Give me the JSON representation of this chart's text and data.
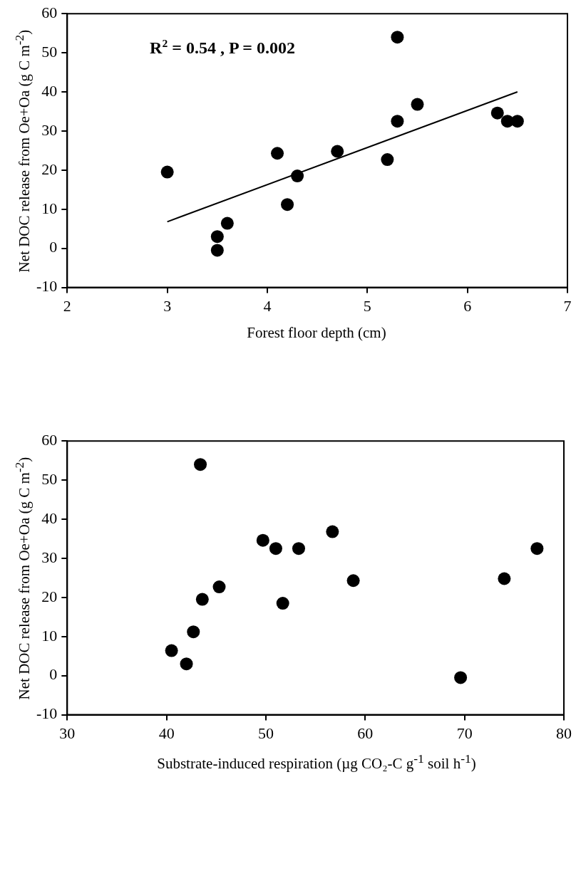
{
  "chart_data": [
    {
      "type": "scatter",
      "xlabel": "Forest floor depth (cm)",
      "ylabel": "Net DOC release from Oe+Oa (g C m$^{-2}$)",
      "annotations": [
        "R$^{2}$ = 0.54 , P = 0.002"
      ],
      "xlim": [
        2,
        7
      ],
      "xticks": [
        2,
        3,
        4,
        5,
        6,
        7
      ],
      "ylim": [
        -10,
        60
      ],
      "yticks": [
        -10,
        0,
        10,
        20,
        30,
        40,
        50,
        60
      ],
      "marker": "circle",
      "series": [
        {
          "color": "#000000",
          "x": [
            3.0,
            3.5,
            3.5,
            3.6,
            4.1,
            4.2,
            4.3,
            4.7,
            5.2,
            5.3,
            5.3,
            5.5,
            6.3,
            6.4,
            6.5
          ],
          "values": [
            19.5,
            3,
            -0.5,
            6.4,
            24.3,
            11.2,
            18.5,
            24.8,
            22.7,
            54,
            32.5,
            36.8,
            34.6,
            32.5,
            32.5
          ]
        },
        {
          "type": "line",
          "color": "#000000",
          "marker": "none",
          "x": [
            3.0,
            6.5
          ],
          "values": [
            6.8,
            40
          ]
        }
      ]
    },
    {
      "type": "scatter",
      "xlabel": "Substrate-induced respiration (µg CO₂-C g$^{-1}$ soil h$^{-1}$)",
      "ylabel": "Net DOC release from Oe+Oa (g C m$^{-2}$)",
      "xlim": [
        30,
        80
      ],
      "xticks": [
        30,
        40,
        50,
        60,
        70,
        80
      ],
      "ylim": [
        -10,
        60
      ],
      "yticks": [
        -10,
        0,
        10,
        20,
        30,
        40,
        50,
        60
      ],
      "marker": "circle",
      "series": [
        {
          "color": "#000000",
          "x": [
            40.5,
            42,
            42.7,
            43.4,
            43.6,
            45.3,
            49.7,
            51,
            51.7,
            53.3,
            56.7,
            58.8,
            69.6,
            74,
            77.3
          ],
          "values": [
            6.4,
            3,
            11.2,
            54,
            19.5,
            22.7,
            34.6,
            32.5,
            18.5,
            32.5,
            36.8,
            24.3,
            -0.5,
            24.8,
            32.5
          ]
        }
      ]
    }
  ]
}
